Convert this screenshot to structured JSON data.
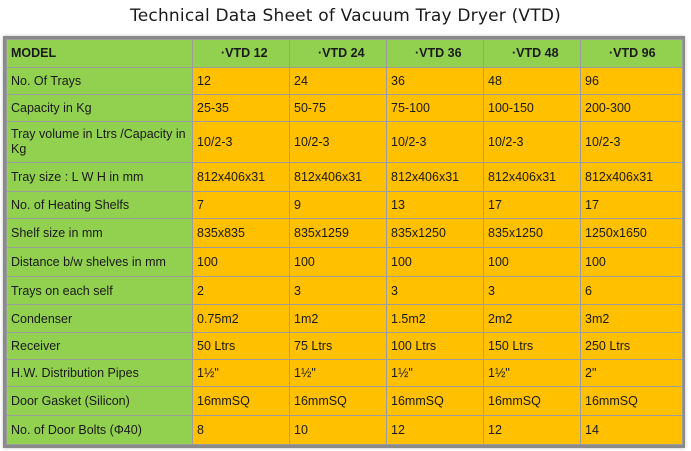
{
  "title": "Technical Data Sheet of Vacuum Tray Dryer (VTD)",
  "table": {
    "header": [
      "MODEL",
      "·VTD 12",
      "·VTD 24",
      "·VTD 36",
      "·VTD 48",
      "·VTD 96"
    ],
    "rows": [
      {
        "label": "No. Of Trays",
        "values": [
          "12",
          "24",
          "36",
          "48",
          "96"
        ]
      },
      {
        "label": "Capacity in Kg",
        "values": [
          "25-35",
          "50-75",
          "75-100",
          "100-150",
          "200-300"
        ]
      },
      {
        "label": "Tray volume in Ltrs /Capacity in Kg",
        "values": [
          "10/2-3",
          "10/2-3",
          "10/2-3",
          "10/2-3",
          "10/2-3"
        ]
      },
      {
        "label": "Tray size : L W H in mm",
        "values": [
          "812x406x31",
          "812x406x31",
          "812x406x31",
          "812x406x31",
          "812x406x31"
        ]
      },
      {
        "label": "No. of Heating Shelfs",
        "values": [
          "7",
          "9",
          "13",
          "17",
          "17"
        ]
      },
      {
        "label": "Shelf size in mm",
        "values": [
          "835x835",
          "835x1259",
          "835x1250",
          "835x1250",
          "1250x1650"
        ]
      },
      {
        "label": "Distance b/w shelves in mm",
        "values": [
          "100",
          "100",
          "100",
          "100",
          "100"
        ]
      },
      {
        "label": "Trays on each self",
        "values": [
          "2",
          "3",
          "3",
          "3",
          "6"
        ]
      },
      {
        "label": "Condenser",
        "values": [
          "0.75m2",
          "1m2",
          "1.5m2",
          "2m2",
          "3m2"
        ]
      },
      {
        "label": "Receiver",
        "values": [
          "50 Ltrs",
          "75 Ltrs",
          "100 Ltrs",
          "150 Ltrs",
          "250 Ltrs"
        ]
      },
      {
        "label": "H.W. Distribution Pipes",
        "values": [
          "1½\"",
          "1½\"",
          "1½\"",
          "1½\"",
          "2\""
        ]
      },
      {
        "label": "Door Gasket (Silicon)",
        "values": [
          "16mmSQ",
          "16mmSQ",
          "16mmSQ",
          "16mmSQ",
          "16mmSQ"
        ]
      },
      {
        "label": "No. of Door Bolts (Φ40)",
        "values": [
          "8",
          "10",
          "12",
          "12",
          "14"
        ]
      }
    ]
  },
  "colors": {
    "label_bg": "#92d050",
    "value_bg": "#ffc000"
  }
}
